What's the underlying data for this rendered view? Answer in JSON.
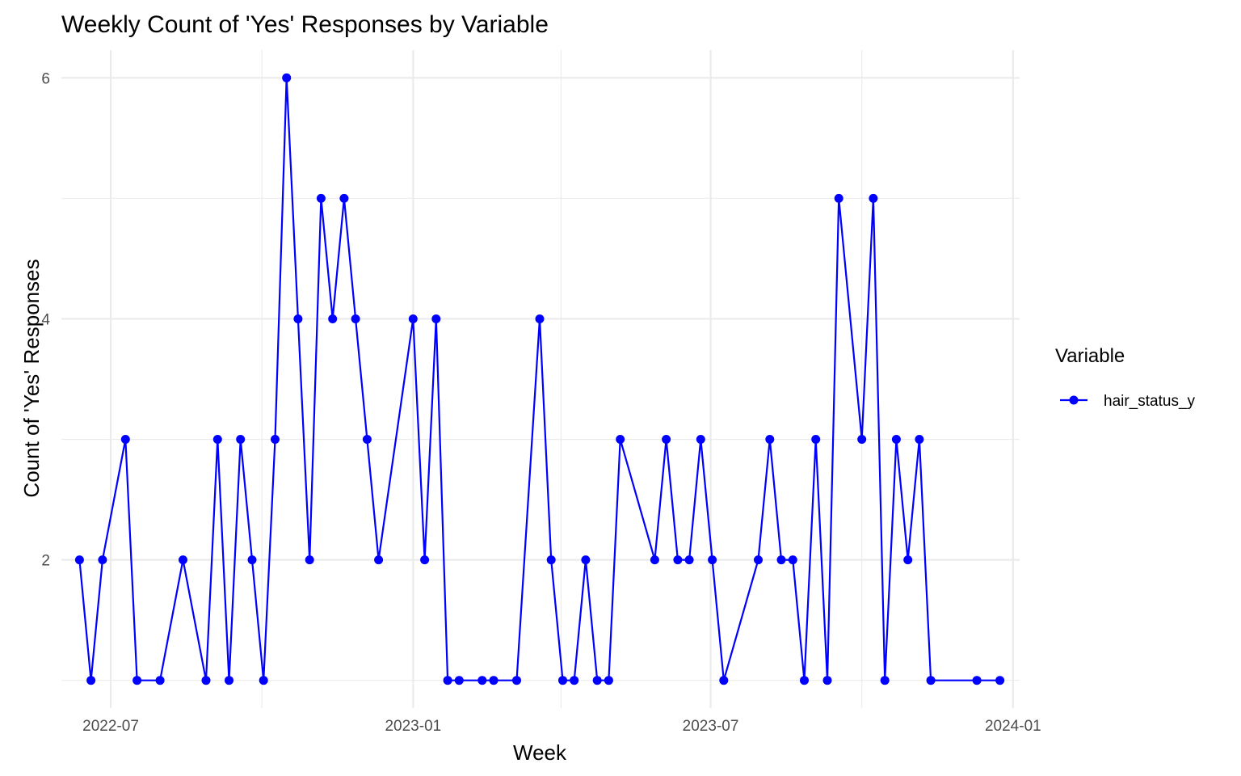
{
  "chart_data": {
    "type": "line",
    "title": "Weekly Count of 'Yes' Responses by Variable",
    "xlabel": "Week",
    "ylabel": "Count of 'Yes' Responses",
    "xlim": [
      "2022-06-01",
      "2024-01-05"
    ],
    "ylim": [
      0.77,
      6.23
    ],
    "x_ticks": [
      {
        "date": "2022-07-01",
        "label": "2022-07"
      },
      {
        "date": "2023-01-01",
        "label": "2023-01"
      },
      {
        "date": "2023-07-01",
        "label": "2023-07"
      },
      {
        "date": "2024-01-01",
        "label": "2024-01"
      }
    ],
    "x_minor_ticks": [
      "2022-10-01",
      "2023-04-01",
      "2023-10-01"
    ],
    "y_ticks": [
      2,
      4,
      6
    ],
    "y_minor_ticks": [
      1,
      3,
      5
    ],
    "grid": true,
    "legend": {
      "title": "Variable",
      "position": "right"
    },
    "series": [
      {
        "name": "hair_status_y",
        "color": "#0000ff",
        "x": [
          "2022-06-12",
          "2022-06-19",
          "2022-06-26",
          "2022-07-10",
          "2022-07-17",
          "2022-07-31",
          "2022-08-14",
          "2022-08-28",
          "2022-09-04",
          "2022-09-11",
          "2022-09-18",
          "2022-09-25",
          "2022-10-02",
          "2022-10-09",
          "2022-10-16",
          "2022-10-23",
          "2022-10-30",
          "2022-11-06",
          "2022-11-13",
          "2022-11-20",
          "2022-11-27",
          "2022-12-04",
          "2022-12-11",
          "2023-01-01",
          "2023-01-08",
          "2023-01-15",
          "2023-01-22",
          "2023-01-29",
          "2023-02-12",
          "2023-02-19",
          "2023-03-05",
          "2023-03-19",
          "2023-03-26",
          "2023-04-02",
          "2023-04-09",
          "2023-04-16",
          "2023-04-23",
          "2023-04-30",
          "2023-05-07",
          "2023-05-28",
          "2023-06-04",
          "2023-06-11",
          "2023-06-18",
          "2023-06-25",
          "2023-07-02",
          "2023-07-09",
          "2023-07-30",
          "2023-08-06",
          "2023-08-13",
          "2023-08-20",
          "2023-08-27",
          "2023-09-03",
          "2023-09-10",
          "2023-09-17",
          "2023-10-01",
          "2023-10-08",
          "2023-10-15",
          "2023-10-22",
          "2023-10-29",
          "2023-11-05",
          "2023-11-12",
          "2023-12-10",
          "2023-12-24"
        ],
        "y": [
          2,
          1,
          2,
          3,
          1,
          1,
          2,
          1,
          3,
          1,
          3,
          2,
          1,
          3,
          6,
          4,
          2,
          5,
          4,
          5,
          4,
          3,
          2,
          4,
          2,
          4,
          1,
          1,
          1,
          1,
          1,
          4,
          2,
          1,
          1,
          2,
          1,
          1,
          3,
          2,
          3,
          2,
          2,
          3,
          2,
          1,
          2,
          3,
          2,
          2,
          1,
          3,
          1,
          5,
          3,
          5,
          1,
          3,
          2,
          3,
          1,
          1,
          1
        ]
      }
    ]
  }
}
